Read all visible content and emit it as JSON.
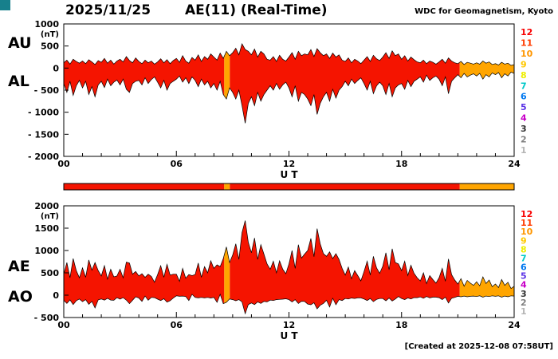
{
  "header": {
    "date": "2025/11/25",
    "title": "AE(11) (Real-Time)",
    "source": "WDC for Geomagnetism, Kyoto"
  },
  "footer": {
    "created": "[Created at 2025-12-08 07:58UT]"
  },
  "colors": {
    "red": "#f51400",
    "orange": "#ffa500",
    "frame": "#000000",
    "background": "#ffffff",
    "logo_teal": "#17808c"
  },
  "legend_levels": [
    {
      "label": "12",
      "color": "#f80000"
    },
    {
      "label": "11",
      "color": "#ff3c00"
    },
    {
      "label": "10",
      "color": "#ff9600"
    },
    {
      "label": "9",
      "color": "#ffc800"
    },
    {
      "label": "8",
      "color": "#eeee00"
    },
    {
      "label": "7",
      "color": "#00c8c8"
    },
    {
      "label": "6",
      "color": "#0078f0"
    },
    {
      "label": "5",
      "color": "#5a32e6"
    },
    {
      "label": "4",
      "color": "#c800c8"
    },
    {
      "label": "3",
      "color": "#323232"
    },
    {
      "label": "2",
      "color": "#808080"
    },
    {
      "label": "1",
      "color": "#b4b4b4"
    }
  ],
  "fill_segments": [
    {
      "from": 0,
      "to": 8.55,
      "color": "red"
    },
    {
      "from": 8.55,
      "to": 8.85,
      "color": "orange"
    },
    {
      "from": 8.85,
      "to": 21.1,
      "color": "red"
    },
    {
      "from": 21.1,
      "to": 24,
      "color": "orange"
    }
  ],
  "chart_data": [
    {
      "type": "area",
      "panel": "AU-AL",
      "ylim": [
        -2000,
        1000
      ],
      "yticks": [
        1000,
        500,
        0,
        -500,
        -1000,
        -1500,
        -2000
      ],
      "ytick_labels": [
        "1000",
        "500",
        "0",
        "- 500",
        "- 1000",
        "- 1500",
        "- 2000"
      ],
      "y_unit_label": "(nT)",
      "xlabel": "U T",
      "xticks": [
        "00",
        "06",
        "12",
        "18",
        "24"
      ],
      "x_hours_range": [
        0,
        24
      ],
      "series": [
        {
          "name": "AU",
          "values": [
            120,
            180,
            90,
            200,
            150,
            110,
            160,
            100,
            190,
            140,
            80,
            170,
            130,
            220,
            110,
            180,
            90,
            160,
            200,
            140,
            260,
            170,
            120,
            230,
            150,
            100,
            180,
            120,
            160,
            90,
            140,
            210,
            120,
            190,
            100,
            170,
            220,
            130,
            280,
            160,
            110,
            240,
            180,
            300,
            150,
            260,
            200,
            320,
            250,
            180,
            340,
            220,
            380,
            280,
            350,
            450,
            300,
            550,
            420,
            380,
            300,
            430,
            250,
            380,
            320,
            200,
            180,
            260,
            150,
            290,
            200,
            160,
            250,
            350,
            200,
            380,
            280,
            320,
            300,
            420,
            260,
            440,
            350,
            280,
            320,
            220,
            340,
            250,
            300,
            180,
            150,
            230,
            120,
            200,
            160,
            100,
            180,
            260,
            150,
            290,
            210,
            170,
            250,
            350,
            220,
            390,
            280,
            320,
            200,
            280,
            160,
            250,
            190,
            140,
            120,
            180,
            100,
            160,
            130,
            90,
            140,
            200,
            110,
            230,
            160,
            120,
            100,
            150,
            80,
            130,
            110,
            90,
            120,
            90,
            160,
            110,
            140,
            80,
            100,
            70,
            130,
            90,
            110,
            60,
            80
          ]
        },
        {
          "name": "AL",
          "values": [
            -350,
            -550,
            -300,
            -620,
            -400,
            -280,
            -450,
            -300,
            -600,
            -420,
            -650,
            -380,
            -300,
            -440,
            -250,
            -400,
            -320,
            -270,
            -380,
            -250,
            -480,
            -550,
            -350,
            -300,
            -280,
            -380,
            -220,
            -350,
            -260,
            -200,
            -320,
            -450,
            -280,
            -500,
            -350,
            -300,
            -250,
            -180,
            -320,
            -220,
            -350,
            -200,
            -280,
            -420,
            -250,
            -380,
            -300,
            -450,
            -350,
            -500,
            -300,
            -600,
            -700,
            -450,
            -550,
            -700,
            -500,
            -850,
            -1250,
            -800,
            -650,
            -850,
            -550,
            -750,
            -600,
            -500,
            -400,
            -500,
            -350,
            -480,
            -380,
            -320,
            -450,
            -650,
            -400,
            -750,
            -550,
            -600,
            -700,
            -850,
            -600,
            -1050,
            -800,
            -650,
            -550,
            -750,
            -480,
            -680,
            -500,
            -420,
            -300,
            -400,
            -250,
            -350,
            -280,
            -220,
            -350,
            -500,
            -300,
            -580,
            -400,
            -320,
            -400,
            -600,
            -350,
            -650,
            -450,
            -380,
            -350,
            -480,
            -280,
            -420,
            -300,
            -250,
            -200,
            -320,
            -160,
            -280,
            -220,
            -180,
            -250,
            -400,
            -200,
            -580,
            -300,
            -220,
            -150,
            -220,
            -120,
            -200,
            -160,
            -130,
            -180,
            -120,
            -250,
            -150,
            -200,
            -110,
            -150,
            -100,
            -220,
            -130,
            -180,
            -90,
            -120
          ]
        }
      ]
    },
    {
      "type": "area",
      "panel": "AE-AO",
      "ylim": [
        -500,
        2000
      ],
      "yticks": [
        2000,
        1500,
        1000,
        500,
        0,
        -500
      ],
      "ytick_labels": [
        "2000",
        "1500",
        "1000",
        "500",
        "0",
        "- 500"
      ],
      "y_unit_label": "(nT)",
      "xlabel": "U T",
      "xticks": [
        "00",
        "06",
        "12",
        "18",
        "24"
      ],
      "x_hours_range": [
        0,
        24
      ],
      "series": [
        {
          "name": "AE",
          "values": [
            470,
            730,
            390,
            820,
            550,
            390,
            610,
            400,
            790,
            560,
            730,
            550,
            430,
            660,
            360,
            580,
            410,
            430,
            580,
            390,
            740,
            720,
            470,
            530,
            430,
            480,
            400,
            470,
            420,
            290,
            460,
            660,
            400,
            690,
            450,
            470,
            470,
            310,
            600,
            380,
            460,
            440,
            460,
            720,
            400,
            640,
            500,
            770,
            600,
            680,
            640,
            820,
            1080,
            730,
            900,
            1150,
            800,
            1400,
            1670,
            1180,
            950,
            1280,
            800,
            1130,
            920,
            700,
            580,
            760,
            500,
            770,
            580,
            480,
            700,
            1000,
            600,
            1130,
            830,
            920,
            1000,
            1270,
            860,
            1490,
            1150,
            930,
            870,
            970,
            820,
            930,
            800,
            600,
            450,
            630,
            370,
            550,
            440,
            320,
            530,
            760,
            450,
            870,
            610,
            490,
            650,
            950,
            570,
            1040,
            730,
            700,
            550,
            760,
            440,
            670,
            490,
            390,
            320,
            500,
            260,
            440,
            350,
            270,
            390,
            600,
            310,
            810,
            460,
            340,
            250,
            370,
            200,
            330,
            270,
            220,
            300,
            210,
            410,
            260,
            340,
            190,
            250,
            170,
            350,
            220,
            290,
            150,
            200
          ]
        },
        {
          "name": "AO",
          "values": [
            -115,
            -185,
            -105,
            -210,
            -125,
            -85,
            -145,
            -100,
            -205,
            -140,
            -285,
            -105,
            -85,
            -110,
            -70,
            -110,
            -115,
            -55,
            -90,
            -55,
            -110,
            -190,
            -115,
            -35,
            -65,
            -140,
            -20,
            -115,
            -50,
            -55,
            -90,
            -120,
            -80,
            -155,
            -125,
            -65,
            -15,
            -25,
            -20,
            -30,
            -120,
            20,
            -50,
            -60,
            -50,
            -60,
            -50,
            -65,
            -50,
            -160,
            20,
            -190,
            -160,
            -85,
            -100,
            -125,
            -100,
            -150,
            -415,
            -210,
            -175,
            -210,
            -150,
            -185,
            -140,
            -150,
            -110,
            -120,
            -100,
            -95,
            -90,
            -80,
            -100,
            -150,
            -100,
            -185,
            -135,
            -140,
            -200,
            -215,
            -170,
            -305,
            -225,
            -185,
            -115,
            -265,
            -70,
            -215,
            -100,
            -120,
            -75,
            -85,
            -65,
            -75,
            -60,
            -60,
            -85,
            -120,
            -75,
            -145,
            -95,
            -75,
            -75,
            -125,
            -65,
            -130,
            -85,
            -30,
            -75,
            -100,
            -60,
            -85,
            -55,
            -55,
            -40,
            -70,
            -30,
            -60,
            -45,
            -45,
            -55,
            -100,
            -45,
            -175,
            -70,
            -50,
            -25,
            -35,
            -20,
            -35,
            -25,
            -20,
            -30,
            -15,
            -45,
            -20,
            -30,
            -15,
            -25,
            -15,
            -45,
            -20,
            -35,
            -15,
            -20
          ]
        }
      ]
    }
  ]
}
